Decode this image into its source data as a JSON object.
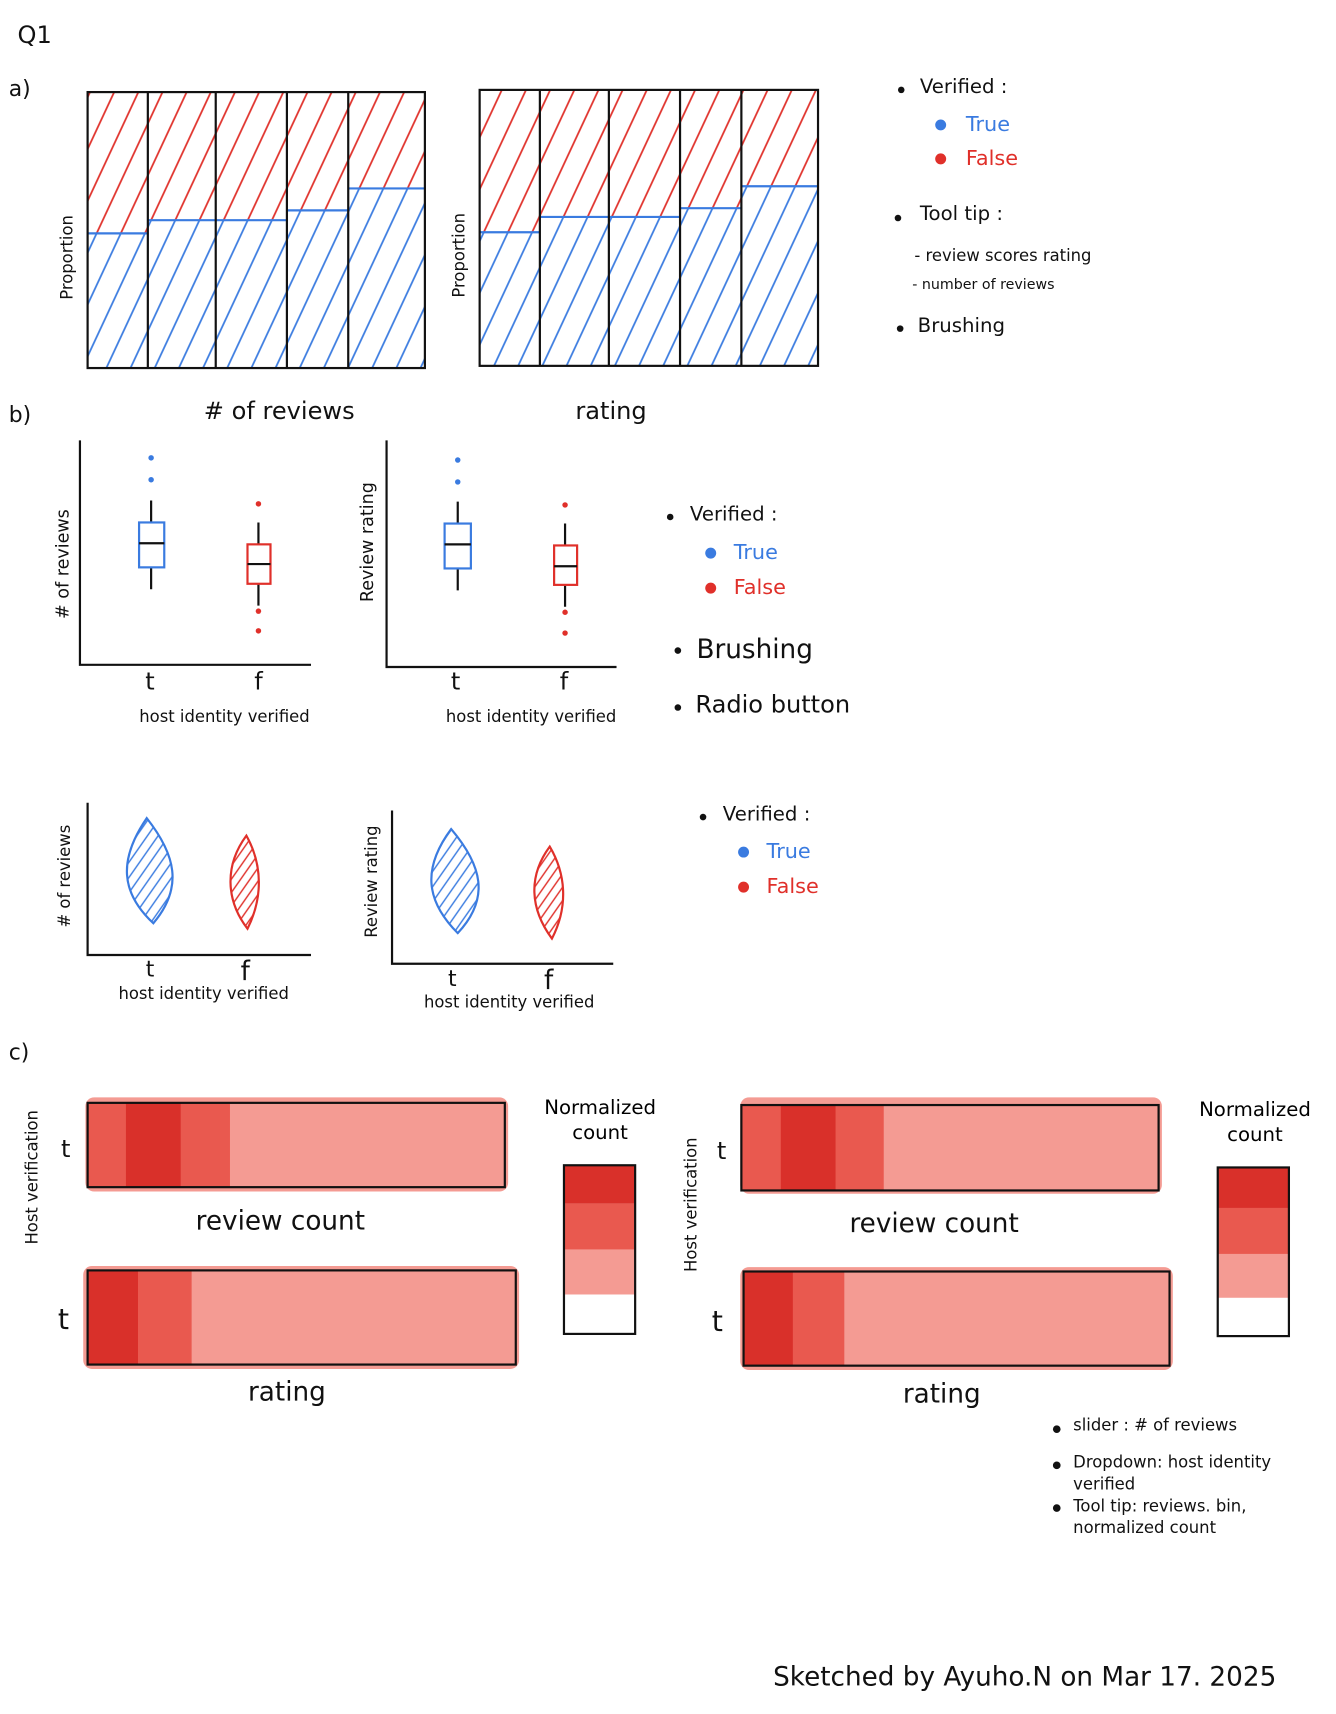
{
  "title": "Q1",
  "section_a": {
    "label": "a)",
    "charts": [
      {
        "y_label": "Proportion",
        "x_label": "# of reviews"
      },
      {
        "y_label": "Proportion",
        "x_label": "rating"
      }
    ],
    "notes": {
      "legend_title": "Verified :",
      "legend_items": [
        "True",
        "False"
      ],
      "tooltip_title": "Tool tip :",
      "tooltip_items": [
        "- review scores rating",
        "- number of reviews"
      ],
      "interaction": "Brushing"
    }
  },
  "section_b": {
    "label": "b)",
    "box_charts": [
      {
        "y_label": "# of reviews",
        "x_ticks": [
          "t",
          "f"
        ],
        "x_label": "host identity verified"
      },
      {
        "y_label": "Review rating",
        "x_ticks": [
          "t",
          "f"
        ],
        "x_label": "host identity verified"
      }
    ],
    "box_notes": {
      "legend_title": "Verified :",
      "legend_items": [
        "True",
        "False"
      ],
      "interactions": [
        "Brushing",
        "Radio button"
      ]
    },
    "violin_charts": [
      {
        "y_label": "# of reviews",
        "x_ticks": [
          "t",
          "f"
        ],
        "x_label": "host identity verified"
      },
      {
        "y_label": "Review rating",
        "x_ticks": [
          "t",
          "f"
        ],
        "x_label": "host identity verified"
      }
    ],
    "violin_notes": {
      "legend_title": "Verified :",
      "legend_items": [
        "True",
        "False"
      ]
    }
  },
  "section_c": {
    "label": "c)",
    "panels": [
      {
        "y_label": "Host verification",
        "rows": [
          {
            "tick": "t",
            "x_label": "review count"
          },
          {
            "tick": "t",
            "x_label": "rating"
          }
        ],
        "legend_title": "Normalized count"
      },
      {
        "y_label": "Host verification",
        "rows": [
          {
            "tick": "t",
            "x_label": "review count"
          },
          {
            "tick": "t",
            "x_label": "rating"
          }
        ],
        "legend_title": "Normalized count"
      }
    ],
    "notes": [
      "slider : # of reviews",
      "Dropdown: host identity verified",
      "Tool tip: reviews. bin, normalized count"
    ]
  },
  "footer": "Sketched by Ayuho.N on Mar 17. 2025"
}
